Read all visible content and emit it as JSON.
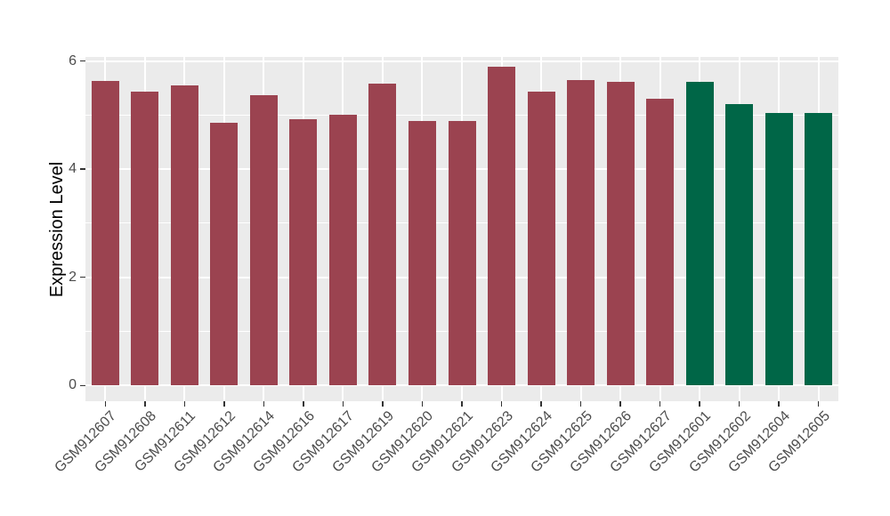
{
  "chart_data": {
    "type": "bar",
    "title": "",
    "xlabel": "",
    "ylabel": "Expression Level",
    "categories": [
      "GSM912607",
      "GSM912608",
      "GSM912611",
      "GSM912612",
      "GSM912614",
      "GSM912616",
      "GSM912617",
      "GSM912619",
      "GSM912620",
      "GSM912621",
      "GSM912623",
      "GSM912624",
      "GSM912625",
      "GSM912626",
      "GSM912627",
      "GSM912601",
      "GSM912602",
      "GSM912604",
      "GSM912605"
    ],
    "values": [
      5.63,
      5.43,
      5.54,
      4.85,
      5.37,
      4.92,
      5.0,
      5.58,
      4.89,
      4.89,
      5.89,
      5.43,
      5.65,
      5.61,
      5.3,
      5.61,
      5.21,
      5.03,
      5.03
    ],
    "bar_colors": [
      "#9B4350",
      "#9B4350",
      "#9B4350",
      "#9B4350",
      "#9B4350",
      "#9B4350",
      "#9B4350",
      "#9B4350",
      "#9B4350",
      "#9B4350",
      "#9B4350",
      "#9B4350",
      "#9B4350",
      "#9B4350",
      "#9B4350",
      "#006647",
      "#006647",
      "#006647",
      "#006647"
    ],
    "groups": [
      {
        "color": "#9B4350",
        "bar_count": 15
      },
      {
        "color": "#006647",
        "bar_count": 4
      }
    ],
    "ylim": [
      0,
      6
    ],
    "yticks": [
      0,
      2,
      4,
      6
    ],
    "yticks_minor": [
      1,
      3,
      5
    ],
    "ytick_labels": [
      "0",
      "2",
      "4",
      "6"
    ],
    "x_tick_rotation_deg": 45,
    "grid": true,
    "legend_position": "none",
    "panel_background": "#EBEBEB",
    "grid_color": "#FFFFFF",
    "axis_text_color": "#4D4D4D",
    "axis_title_color": "#000000",
    "figure_background": "#FFFFFF"
  }
}
